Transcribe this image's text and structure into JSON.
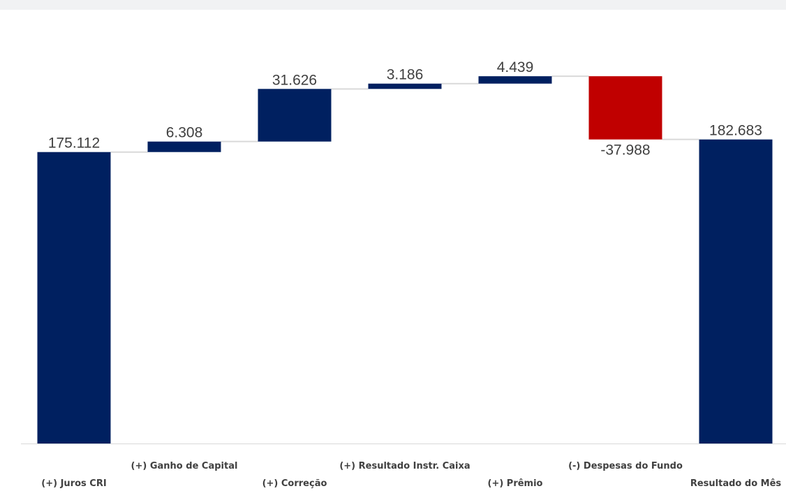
{
  "chart_data": {
    "type": "bar",
    "subtype": "waterfall",
    "categories": [
      "(+) Juros CRI",
      "(+) Ganho de Capital",
      "(+) Correção",
      "(+) Resultado Instr. Caixa",
      "(+) Prêmio",
      "(-) Despesas do Fundo",
      "Resultado do Mês"
    ],
    "values": [
      175112,
      6308,
      31626,
      3186,
      4439,
      -37988,
      182683
    ],
    "value_labels": [
      "175.112",
      "6.308",
      "31.626",
      "3.186",
      "4.439",
      "-37.988",
      "182.683"
    ],
    "bar_kinds": [
      "total",
      "delta",
      "delta",
      "delta",
      "delta",
      "delta",
      "total"
    ],
    "title": "",
    "xlabel": "",
    "ylabel": "",
    "ylim": [
      0,
      235000
    ],
    "grid": false,
    "legend": "none",
    "colors": {
      "increase": "#002060",
      "decrease": "#c00000",
      "total": "#002060",
      "connector": "#d9d9d9",
      "axis": "#d9d9d9",
      "text": "#404040"
    }
  }
}
